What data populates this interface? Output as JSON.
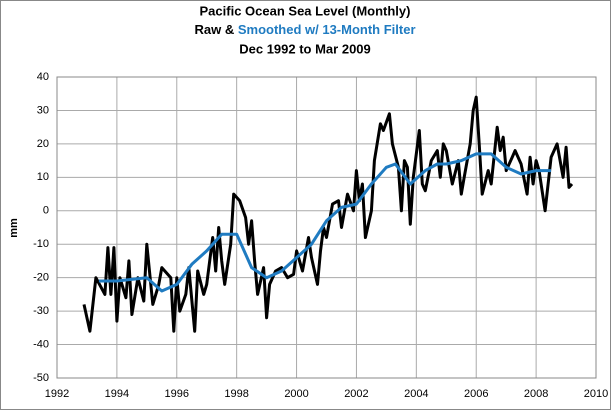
{
  "chart_data": {
    "type": "line",
    "title": "Pacific Ocean Sea Level (Monthly)",
    "subtitle_parts": [
      {
        "text": "Raw &",
        "color": "#000000"
      },
      {
        "text": "Smoothed w/ 13-Month Filter",
        "color": "#1f7bc1"
      }
    ],
    "date_range": "Dec 1992 to Mar 2009",
    "y_label": "mm",
    "xlim": [
      1992,
      2010
    ],
    "xticks": [
      1992,
      1994,
      1996,
      1998,
      2000,
      2002,
      2004,
      2006,
      2008,
      2010
    ],
    "ylim": [
      -50,
      40
    ],
    "yticks": [
      -50,
      -40,
      -30,
      -20,
      -10,
      0,
      10,
      20,
      30,
      40
    ],
    "grid": true,
    "series": [
      {
        "name": "Raw",
        "color": "#000000",
        "width": 3,
        "x": [
          1992.9,
          1993.1,
          1993.3,
          1993.6,
          1993.7,
          1993.8,
          1993.9,
          1994.0,
          1994.1,
          1994.3,
          1994.4,
          1994.5,
          1994.7,
          1994.9,
          1995.0,
          1995.2,
          1995.4,
          1995.5,
          1995.8,
          1995.9,
          1996.0,
          1996.1,
          1996.3,
          1996.4,
          1996.6,
          1996.7,
          1996.9,
          1997.0,
          1997.2,
          1997.3,
          1997.4,
          1997.5,
          1997.6,
          1997.8,
          1997.9,
          1998.1,
          1998.3,
          1998.4,
          1998.5,
          1998.6,
          1998.7,
          1998.9,
          1999.0,
          1999.1,
          1999.3,
          1999.5,
          1999.7,
          1999.9,
          2000.0,
          2000.2,
          2000.4,
          2000.5,
          2000.7,
          2000.8,
          2000.9,
          2001.0,
          2001.2,
          2001.4,
          2001.5,
          2001.7,
          2001.9,
          2002.0,
          2002.1,
          2002.2,
          2002.3,
          2002.5,
          2002.6,
          2002.8,
          2002.9,
          2003.1,
          2003.2,
          2003.4,
          2003.5,
          2003.6,
          2003.7,
          2003.8,
          2003.9,
          2004.1,
          2004.2,
          2004.3,
          2004.5,
          2004.7,
          2004.8,
          2004.9,
          2005.0,
          2005.2,
          2005.4,
          2005.5,
          2005.6,
          2005.8,
          2005.9,
          2006.0,
          2006.1,
          2006.2,
          2006.4,
          2006.5,
          2006.7,
          2006.8,
          2006.9,
          2007.0,
          2007.2,
          2007.3,
          2007.5,
          2007.7,
          2007.8,
          2007.9,
          2008.0,
          2008.1,
          2008.3,
          2008.5,
          2008.7,
          2008.8,
          2008.9,
          2009.0,
          2009.1,
          2009.2
        ],
        "values": [
          -28,
          -36,
          -20,
          -25,
          -11,
          -25,
          -11,
          -33,
          -20,
          -26,
          -15,
          -31,
          -20,
          -27,
          -10,
          -28,
          -22,
          -17,
          -20,
          -36,
          -20,
          -30,
          -25,
          -17,
          -36,
          -18,
          -25,
          -22,
          -8,
          -18,
          -5,
          -15,
          -22,
          -10,
          5,
          3,
          -2,
          -10,
          -3,
          -15,
          -25,
          -17,
          -32,
          -22,
          -18,
          -17,
          -20,
          -19,
          -12,
          -18,
          -8,
          -14,
          -22,
          -12,
          -5,
          -8,
          2,
          3,
          -5,
          5,
          0,
          12,
          3,
          8,
          -8,
          0,
          15,
          26,
          24,
          29,
          20,
          13,
          0,
          15,
          13,
          -4,
          10,
          24,
          8,
          6,
          15,
          18,
          10,
          20,
          18,
          8,
          15,
          5,
          10,
          20,
          30,
          34,
          20,
          5,
          12,
          8,
          25,
          18,
          22,
          12,
          16,
          18,
          14,
          5,
          16,
          8,
          15,
          12,
          0,
          16,
          20,
          15,
          10,
          19,
          7,
          8
        ]
      },
      {
        "name": "Smoothed",
        "color": "#1f7bc1",
        "width": 3,
        "x": [
          1993.4,
          1994.0,
          1995.0,
          1995.5,
          1996.0,
          1996.5,
          1997.0,
          1997.5,
          1998.0,
          1998.5,
          1999.0,
          1999.5,
          2000.0,
          2000.5,
          2001.0,
          2001.5,
          2002.0,
          2002.5,
          2003.0,
          2003.3,
          2003.8,
          2004.3,
          2004.7,
          2005.0,
          2005.5,
          2006.0,
          2006.5,
          2007.0,
          2007.5,
          2008.0,
          2008.5
        ],
        "values": [
          -21,
          -21,
          -20,
          -24,
          -22,
          -16,
          -12,
          -7,
          -7,
          -17,
          -20,
          -18,
          -14,
          -10,
          -3,
          1,
          2,
          8,
          13,
          14,
          8,
          12,
          14,
          14,
          15,
          17,
          17,
          13,
          11,
          12,
          12
        ]
      }
    ]
  }
}
